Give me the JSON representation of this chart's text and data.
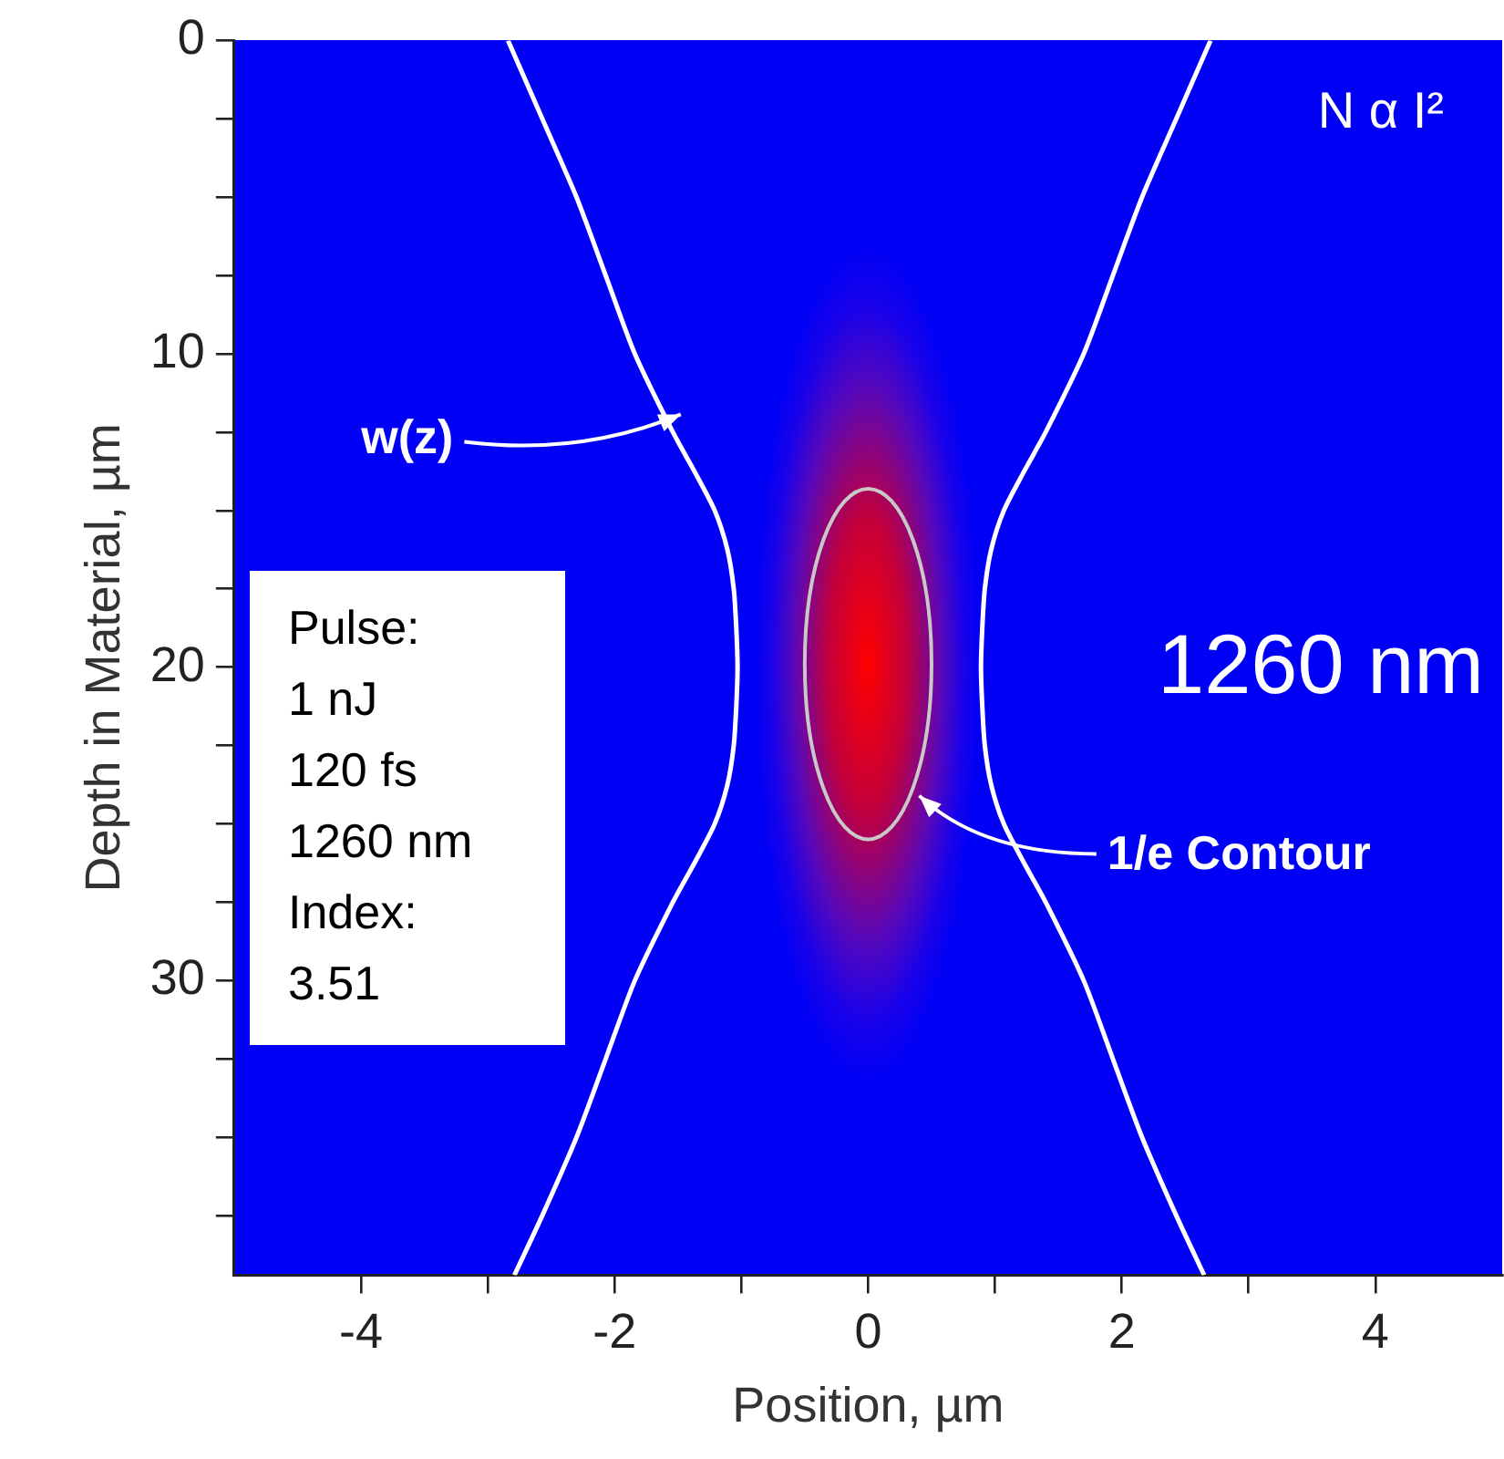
{
  "chart_data": {
    "type": "line",
    "xlabel": "Position, µm",
    "ylabel": "Depth in Material, µm",
    "xlim": [
      -5,
      5
    ],
    "xticks": [
      -4,
      {
        "value": -3,
        "label": null
      },
      -2,
      {
        "value": -1,
        "label": null
      },
      0,
      {
        "value": 1,
        "label": null
      },
      2,
      {
        "value": 3,
        "label": null
      },
      4
    ],
    "ylim": [
      39.4,
      0
    ],
    "yticks": [
      0,
      {
        "value": 2.5,
        "label": null
      },
      {
        "value": 5,
        "label": null
      },
      {
        "value": 7.5,
        "label": null
      },
      10,
      {
        "value": 12.5,
        "label": null
      },
      {
        "value": 15,
        "label": null
      },
      {
        "value": 17.5,
        "label": null
      },
      20,
      {
        "value": 22.5,
        "label": null
      },
      {
        "value": 25,
        "label": null
      },
      {
        "value": 27.5,
        "label": null
      },
      30,
      {
        "value": 32.5,
        "label": null
      },
      {
        "value": 35,
        "label": null
      },
      {
        "value": 37.5,
        "label": null
      }
    ],
    "grid": false,
    "marker": "none",
    "line_style": "solid",
    "series": [
      {
        "color": "#ffffff",
        "x": [
          -2.84,
          -2.57,
          -2.3,
          -2.07,
          -1.84,
          -1.54,
          -1.37,
          -1.21,
          -1.11,
          -1.06,
          -1.04,
          -1.03,
          -1.04,
          -1.06,
          -1.11,
          -1.21,
          -1.37,
          -1.54,
          -1.84,
          -2.07,
          -2.3,
          -2.57,
          -2.79
        ],
        "values": [
          0,
          2.5,
          5,
          7.5,
          10,
          12.5,
          13.75,
          15,
          16.25,
          17.5,
          18.75,
          20,
          21.25,
          22.5,
          23.75,
          25,
          26.25,
          27.5,
          30,
          32.5,
          35,
          37.5,
          39.4
        ]
      },
      {
        "color": "#ffffff",
        "x": [
          2.7,
          2.43,
          2.16,
          1.93,
          1.7,
          1.4,
          1.23,
          1.07,
          0.97,
          0.92,
          0.9,
          0.89,
          0.9,
          0.92,
          0.97,
          1.07,
          1.23,
          1.4,
          1.7,
          1.93,
          2.16,
          2.43,
          2.65
        ],
        "values": [
          0,
          2.5,
          5,
          7.5,
          10,
          12.5,
          13.75,
          15,
          16.25,
          17.5,
          18.75,
          20,
          21.25,
          22.5,
          23.75,
          25,
          26.25,
          27.5,
          30,
          32.5,
          35,
          37.5,
          39.4
        ]
      }
    ],
    "annotations": [
      "w(z)",
      "1/e Contour",
      "N α I²",
      "1260 nm",
      "Pulse:\n1 nJ\n120 fs\n1260 nm\nIndex:\n3.51"
    ]
  }
}
